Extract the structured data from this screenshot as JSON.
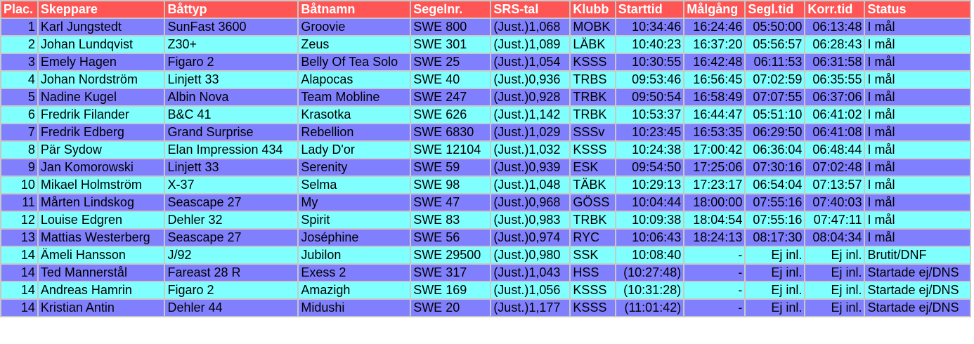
{
  "table": {
    "headers": [
      "Plac.",
      "Skeppare",
      "Båttyp",
      "Båtnamn",
      "Segelnr.",
      "SRS-tal",
      "Klubb",
      "Starttid",
      "Målgång",
      "Segl.tid",
      "Korr.tid",
      "Status"
    ],
    "rows": [
      [
        "1",
        "Karl Jungstedt",
        "SunFast 3600",
        "Groovie",
        "SWE 800",
        "(Just.)1,068",
        "MOBK",
        "10:34:46",
        "16:24:46",
        "05:50:00",
        "06:13:48",
        "I mål"
      ],
      [
        "2",
        "Johan Lundqvist",
        "Z30+",
        "Zeus",
        "SWE 301",
        "(Just.)1,089",
        "LÄBK",
        "10:40:23",
        "16:37:20",
        "05:56:57",
        "06:28:43",
        "I mål"
      ],
      [
        "3",
        "Emely Hagen",
        "Figaro 2",
        "Belly Of Tea Solo",
        "SWE 25",
        "(Just.)1,054",
        "KSSS",
        "10:30:55",
        "16:42:48",
        "06:11:53",
        "06:31:58",
        "I mål"
      ],
      [
        "4",
        "Johan Nordström",
        "Linjett 33",
        "Alapocas",
        "SWE 40",
        "(Just.)0,936",
        "TRBS",
        "09:53:46",
        "16:56:45",
        "07:02:59",
        "06:35:55",
        "I mål"
      ],
      [
        "5",
        "Nadine Kugel",
        "Albin Nova",
        "Team Mobline",
        "SWE 247",
        "(Just.)0,928",
        "TRBK",
        "09:50:54",
        "16:58:49",
        "07:07:55",
        "06:37:06",
        "I mål"
      ],
      [
        "6",
        "Fredrik Filander",
        "B&C 41",
        "Krasotka",
        "SWE 626",
        "(Just.)1,142",
        "TRBK",
        "10:53:37",
        "16:44:47",
        "05:51:10",
        "06:41:02",
        "I mål"
      ],
      [
        "7",
        "Fredrik Edberg",
        "Grand Surprise",
        "Rebellion",
        "SWE 6830",
        "(Just.)1,029",
        "SSSv",
        "10:23:45",
        "16:53:35",
        "06:29:50",
        "06:41:08",
        "I mål"
      ],
      [
        "8",
        "Pär Sydow",
        "Elan Impression 434",
        "Lady D'or",
        "SWE 12104",
        "(Just.)1,032",
        "KSSS",
        "10:24:38",
        "17:00:42",
        "06:36:04",
        "06:48:44",
        "I mål"
      ],
      [
        "9",
        "Jan Komorowski",
        "Linjett 33",
        "Serenity",
        "SWE 59",
        "(Just.)0,939",
        "ESK",
        "09:54:50",
        "17:25:06",
        "07:30:16",
        "07:02:48",
        "I mål"
      ],
      [
        "10",
        "Mikael Holmström",
        "X-37",
        "Selma",
        "SWE 98",
        "(Just.)1,048",
        "TÄBK",
        "10:29:13",
        "17:23:17",
        "06:54:04",
        "07:13:57",
        "I mål"
      ],
      [
        "11",
        "Mårten Lindskog",
        "Seascape 27",
        "My",
        "SWE 47",
        "(Just.)0,968",
        "GÖSS",
        "10:04:44",
        "18:00:00",
        "07:55:16",
        "07:40:03",
        "I mål"
      ],
      [
        "12",
        "Louise Edgren",
        "Dehler 32",
        "Spirit",
        "SWE 83",
        "(Just.)0,983",
        "TRBK",
        "10:09:38",
        "18:04:54",
        "07:55:16",
        "07:47:11",
        "I mål"
      ],
      [
        "13",
        "Mattias Westerberg",
        "Seascape 27",
        "Joséphine",
        "SWE 56",
        "(Just.)0,974",
        "RYC",
        "10:06:43",
        "18:24:13",
        "08:17:30",
        "08:04:34",
        "I mål"
      ],
      [
        "14",
        "Ämeli Hansson",
        "J/92",
        "Jubilon",
        "SWE 29500",
        "(Just.)0,980",
        "SSK",
        "10:08:40",
        "-",
        "Ej inl.",
        "Ej inl.",
        "Brutit/DNF"
      ],
      [
        "14",
        "Ted Mannerstål",
        "Fareast 28 R",
        "Exess 2",
        "SWE 317",
        "(Just.)1,043",
        "HSS",
        "(10:27:48)",
        "-",
        "Ej inl.",
        "Ej inl.",
        "Startade ej/DNS"
      ],
      [
        "14",
        "Andreas Hamrin",
        "Figaro 2",
        "Amazigh",
        "SWE 169",
        "(Just.)1,056",
        "KSSS",
        "(10:31:28)",
        "-",
        "Ej inl.",
        "Ej inl.",
        "Startade ej/DNS"
      ],
      [
        "14",
        "Kristian Antin",
        "Dehler 44",
        "Midushi",
        "SWE 20",
        "(Just.)1,177",
        "KSSS",
        "(11:01:42)",
        "-",
        "Ej inl.",
        "Ej inl.",
        "Startade ej/DNS"
      ]
    ]
  }
}
